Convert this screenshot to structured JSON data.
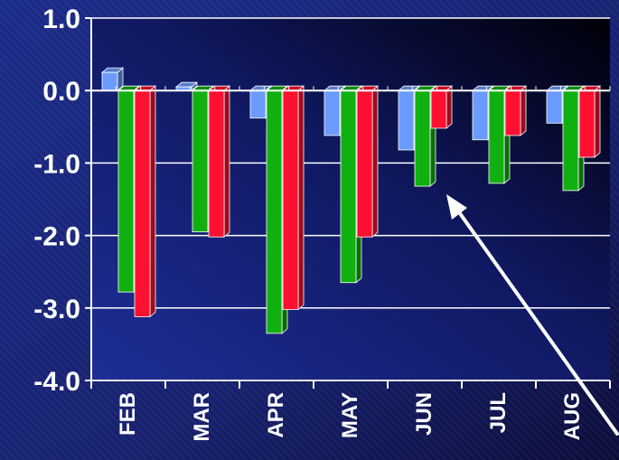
{
  "chart_data": {
    "type": "bar",
    "style": "3d-clustered-column",
    "categories": [
      "FEB",
      "MAR",
      "APR",
      "MAY",
      "JUN",
      "JUL",
      "AUG"
    ],
    "series": [
      {
        "color": "#6b9bff",
        "values": [
          0.25,
          0.05,
          -0.38,
          -0.62,
          -0.82,
          -0.68,
          -0.45
        ]
      },
      {
        "color": "#10b010",
        "values": [
          -2.78,
          -1.95,
          -3.35,
          -2.65,
          -1.32,
          -1.28,
          -1.38
        ]
      },
      {
        "color": "#ff1030",
        "values": [
          -3.12,
          -2.02,
          -3.02,
          -2.02,
          -0.52,
          -0.62,
          -0.92
        ]
      }
    ],
    "ylim": [
      -4.0,
      1.0
    ],
    "yticks": [
      1.0,
      0.0,
      -1.0,
      -2.0,
      -3.0,
      -4.0
    ],
    "ytick_labels": [
      "1.0",
      "0.0",
      "-1.0",
      "-2.0",
      "-3.0",
      "-4.0"
    ],
    "grid": true,
    "background": [
      "#0c0c3a",
      "#1e2e92"
    ],
    "annotation": {
      "type": "arrow",
      "color": "#ffffff"
    }
  }
}
